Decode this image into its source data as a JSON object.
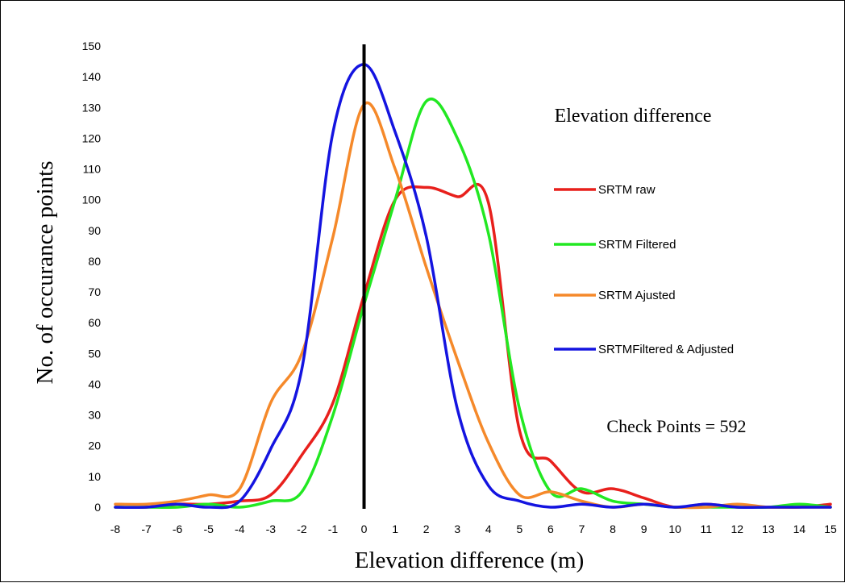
{
  "chart_data": {
    "type": "line",
    "title": "Elevation difference",
    "annotation": "Check Points = 592",
    "xlabel": "Elevation difference (m)",
    "ylabel": "No. of occurance points",
    "xlim": [
      -8,
      15
    ],
    "ylim": [
      0,
      150
    ],
    "x_ticks": [
      -8,
      -7,
      -6,
      -5,
      -4,
      -3,
      -2,
      -1,
      0,
      1,
      2,
      3,
      4,
      5,
      6,
      7,
      8,
      9,
      10,
      11,
      12,
      13,
      14,
      15
    ],
    "y_ticks": [
      0,
      10,
      20,
      30,
      40,
      50,
      60,
      70,
      80,
      90,
      100,
      110,
      120,
      130,
      140,
      150
    ],
    "reference_line_x": 0,
    "grid": false,
    "legend_position": "right",
    "series": [
      {
        "name": "SRTM raw",
        "color": "#e8201c",
        "points": [
          [
            -8,
            0
          ],
          [
            -7,
            0
          ],
          [
            -6,
            1
          ],
          [
            -5,
            1
          ],
          [
            -4,
            2
          ],
          [
            -3,
            4
          ],
          [
            -2,
            17
          ],
          [
            -1,
            34
          ],
          [
            0,
            69
          ],
          [
            1,
            100
          ],
          [
            2,
            104
          ],
          [
            3,
            101
          ],
          [
            4,
            99
          ],
          [
            5,
            25
          ],
          [
            6,
            15
          ],
          [
            7,
            5
          ],
          [
            8,
            6
          ],
          [
            9,
            3
          ],
          [
            10,
            0
          ],
          [
            11,
            1
          ],
          [
            12,
            0
          ],
          [
            13,
            0
          ],
          [
            14,
            0
          ],
          [
            15,
            1
          ]
        ]
      },
      {
        "name": "SRTM Filtered",
        "color": "#22e822",
        "points": [
          [
            -8,
            0
          ],
          [
            -7,
            0
          ],
          [
            -6,
            0
          ],
          [
            -5,
            1
          ],
          [
            -4,
            0
          ],
          [
            -3,
            2
          ],
          [
            -2,
            5
          ],
          [
            -1,
            30
          ],
          [
            0,
            66
          ],
          [
            1,
            100
          ],
          [
            2,
            132
          ],
          [
            3,
            120
          ],
          [
            4,
            89
          ],
          [
            5,
            32
          ],
          [
            6,
            5
          ],
          [
            7,
            6
          ],
          [
            8,
            2
          ],
          [
            9,
            1
          ],
          [
            10,
            0
          ],
          [
            11,
            0
          ],
          [
            12,
            0
          ],
          [
            13,
            0
          ],
          [
            14,
            1
          ],
          [
            15,
            0
          ]
        ]
      },
      {
        "name": "SRTM Ajusted",
        "color": "#f5892a",
        "points": [
          [
            -8,
            1
          ],
          [
            -7,
            1
          ],
          [
            -6,
            2
          ],
          [
            -5,
            4
          ],
          [
            -4,
            6
          ],
          [
            -3,
            34
          ],
          [
            -2,
            50
          ],
          [
            -1,
            88
          ],
          [
            0,
            131
          ],
          [
            1,
            110
          ],
          [
            2,
            78
          ],
          [
            3,
            48
          ],
          [
            4,
            21
          ],
          [
            5,
            4
          ],
          [
            6,
            5
          ],
          [
            7,
            2
          ],
          [
            8,
            0
          ],
          [
            9,
            1
          ],
          [
            10,
            0
          ],
          [
            11,
            0
          ],
          [
            12,
            1
          ],
          [
            13,
            0
          ],
          [
            14,
            0
          ],
          [
            15,
            0
          ]
        ]
      },
      {
        "name": "SRTMFiltered & Adjusted",
        "color": "#1414e0",
        "points": [
          [
            -8,
            0
          ],
          [
            -7,
            0
          ],
          [
            -6,
            1
          ],
          [
            -5,
            0
          ],
          [
            -4,
            2
          ],
          [
            -3,
            19
          ],
          [
            -2,
            45
          ],
          [
            -1,
            122
          ],
          [
            0,
            144
          ],
          [
            1,
            122
          ],
          [
            2,
            88
          ],
          [
            3,
            32
          ],
          [
            4,
            7
          ],
          [
            5,
            2
          ],
          [
            6,
            0
          ],
          [
            7,
            1
          ],
          [
            8,
            0
          ],
          [
            9,
            1
          ],
          [
            10,
            0
          ],
          [
            11,
            1
          ],
          [
            12,
            0
          ],
          [
            13,
            0
          ],
          [
            14,
            0
          ],
          [
            15,
            0
          ]
        ]
      }
    ]
  }
}
